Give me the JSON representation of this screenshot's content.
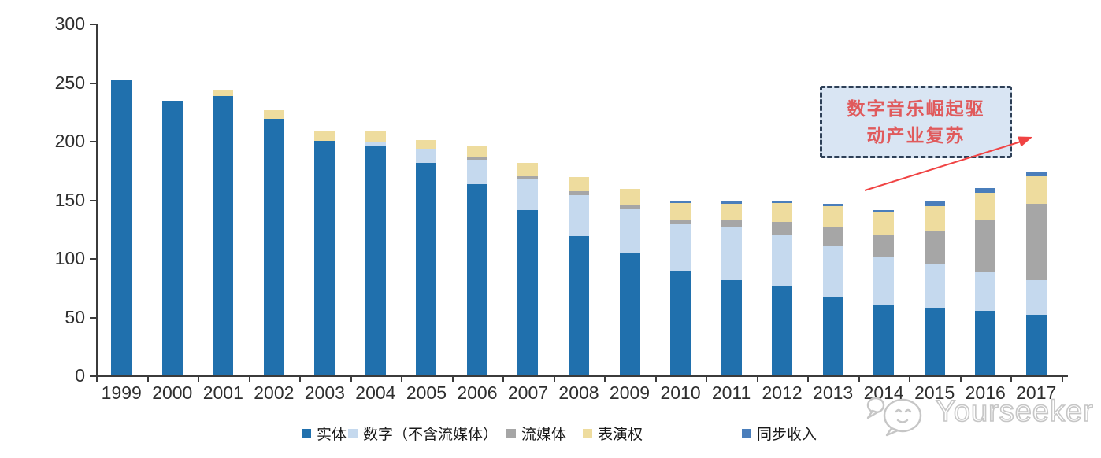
{
  "chart_data": {
    "type": "bar",
    "stacked": true,
    "title": "",
    "xlabel": "",
    "ylabel": "",
    "categories": [
      "1999",
      "2000",
      "2001",
      "2002",
      "2003",
      "2004",
      "2005",
      "2006",
      "2007",
      "2008",
      "2009",
      "2010",
      "2011",
      "2012",
      "2013",
      "2014",
      "2015",
      "2016",
      "2017"
    ],
    "series": [
      {
        "name": "实体",
        "color": "#2070AD",
        "values": [
          252,
          234,
          238,
          219,
          200,
          195,
          181,
          163,
          141,
          119,
          104,
          89,
          81,
          76,
          67,
          60,
          57,
          55,
          52
        ]
      },
      {
        "name": "数字（不含流媒体）",
        "color": "#C5D9EE",
        "values": [
          0,
          0,
          0,
          0,
          0,
          4,
          12,
          21,
          27,
          35,
          38,
          40,
          46,
          44,
          43,
          41,
          38,
          33,
          29
        ]
      },
      {
        "name": "流媒体",
        "color": "#A6A6A6",
        "values": [
          0,
          0,
          0,
          0,
          0,
          0,
          0,
          2,
          2,
          3,
          3,
          4,
          5,
          11,
          16,
          19,
          28,
          45,
          65
        ]
      },
      {
        "name": "表演权",
        "color": "#EEDC9E",
        "values": [
          0,
          0,
          5,
          7,
          8,
          9,
          8,
          9,
          11,
          12,
          14,
          14,
          14,
          16,
          18,
          19,
          21,
          23,
          24
        ]
      },
      {
        "name": "同步收入",
        "color": "#4A7EBB",
        "values": [
          0,
          0,
          0,
          0,
          0,
          0,
          0,
          0,
          0,
          0,
          0,
          2,
          2,
          2,
          2,
          2,
          4,
          4,
          3
        ]
      }
    ],
    "totals": [
      252,
      234,
      243,
      226,
      208,
      208,
      201,
      195,
      181,
      169,
      159,
      149,
      148,
      149,
      146,
      141,
      148,
      160,
      173
    ],
    "ylim": [
      0,
      300
    ],
    "yticks": [
      0,
      50,
      100,
      150,
      200,
      250,
      300
    ],
    "grid": false,
    "legend_position": "bottom"
  },
  "annotation": {
    "line1": "数字音乐崛起驱",
    "line2": "动产业复苏",
    "text_color": "#E05A5C",
    "border_color": "#2E4057",
    "bg_color": "#D9E5F3",
    "arrow_color": "#F04343"
  },
  "watermark": {
    "text": "Yourseeker",
    "icon": "chat-bubbles-logo",
    "color": "#C6C6C6"
  },
  "axis_color": "#3B3B3B"
}
